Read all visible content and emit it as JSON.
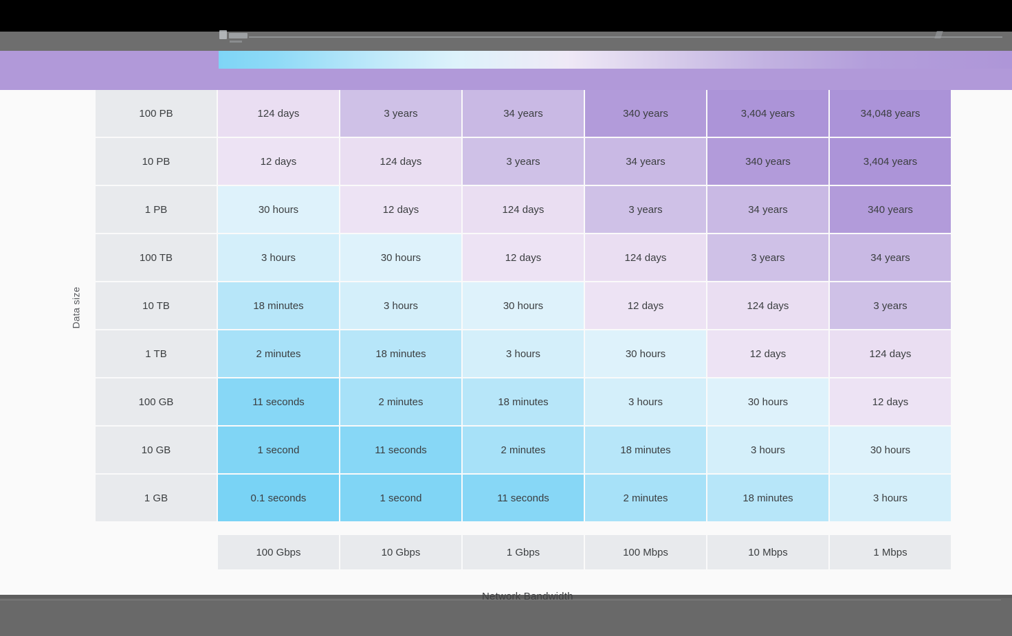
{
  "header": {
    "band_color": "#b199d9",
    "legend": {
      "fast_color": "#7ed5f6",
      "mid_color": "#efe9f6",
      "slow_color": "#ae96d8"
    }
  },
  "chart_data": {
    "type": "heatmap",
    "title": "",
    "x_axis_label": "Network Bandwidth",
    "y_axis_label": "Data size",
    "columns": [
      "100 Gbps",
      "10 Gbps",
      "1 Gbps",
      "100 Mbps",
      "10 Mbps",
      "1 Mbps"
    ],
    "rows": [
      "100 PB",
      "10 PB",
      "1 PB",
      "100 TB",
      "10 TB",
      "1 TB",
      "100 GB",
      "10 GB",
      "1 GB"
    ],
    "cell_values": [
      [
        "124 days",
        "3 years",
        "34 years",
        "340 years",
        "3,404 years",
        "34,048 years"
      ],
      [
        "12 days",
        "124 days",
        "3 years",
        "34 years",
        "340 years",
        "3,404 years"
      ],
      [
        "30 hours",
        "12 days",
        "124 days",
        "3 years",
        "34 years",
        "340 years"
      ],
      [
        "3 hours",
        "30 hours",
        "12 days",
        "124 days",
        "3 years",
        "34 years"
      ],
      [
        "18 minutes",
        "3 hours",
        "30 hours",
        "12 days",
        "124 days",
        "3 years"
      ],
      [
        "2 minutes",
        "18 minutes",
        "3 hours",
        "30 hours",
        "12 days",
        "124 days"
      ],
      [
        "11 seconds",
        "2 minutes",
        "18 minutes",
        "3 hours",
        "30 hours",
        "12 days"
      ],
      [
        "1 second",
        "11 seconds",
        "2 minutes",
        "18 minutes",
        "3 hours",
        "30 hours"
      ],
      [
        "0.1 seconds",
        "1 second",
        "11 seconds",
        "2 minutes",
        "18 minutes",
        "3 hours"
      ]
    ],
    "value_colors": {
      "0.1 seconds": "#79d3f5",
      "1 second": "#80d5f5",
      "11 seconds": "#87d7f6",
      "2 minutes": "#a7e1f8",
      "18 minutes": "#b7e6f9",
      "3 hours": "#d4effa",
      "30 hours": "#def2fb",
      "12 days": "#ede3f4",
      "124 days": "#eadef2",
      "3 years": "#cfc1e7",
      "34 years": "#c9b9e4",
      "340 years": "#b29bda",
      "3,404 years": "#ac94d8",
      "34,048 years": "#ab93d8"
    },
    "label_cell_color": "#e8eaed",
    "cell_text_color": "#3b3e40",
    "legend_position": "top",
    "grid": false
  }
}
